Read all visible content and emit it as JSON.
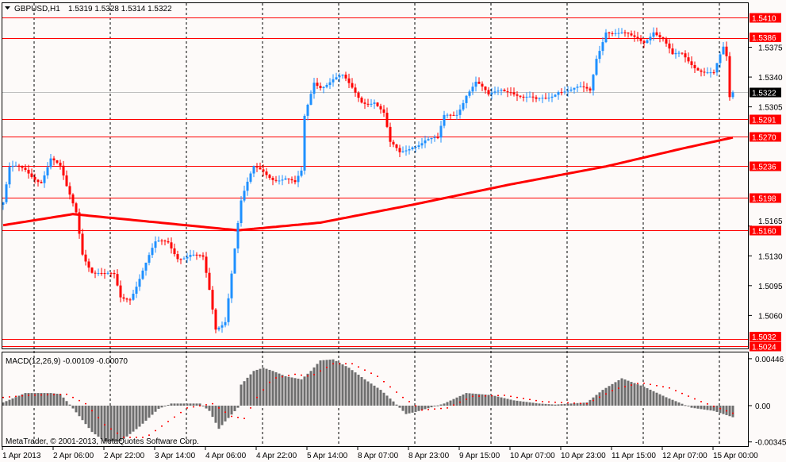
{
  "header": {
    "symbol": "GBPUSD,H1",
    "ohlc": "1.5319 1.5328 1.5314 1.5322",
    "menu_icon": "triangle-down-icon"
  },
  "macd_label": "MACD(12,26,9) -0.00109 -0.00070",
  "copyright": "MetaTrader, © 2001-2013, MetaQuotes Software Corp.",
  "colors": {
    "up": "#1e90ff",
    "down": "#ff0000",
    "ma": "#ff0000",
    "hist": "#6e6e6e",
    "level": "#ff0000",
    "bg": "#fdfaf9"
  },
  "chart_data": {
    "type": "candlestick",
    "price_ylim": [
      1.5012,
      1.5432
    ],
    "price_ticks": [
      "1.5375",
      "1.5340",
      "1.5305",
      "1.5165",
      "1.5130",
      "1.5095",
      "1.5060"
    ],
    "levels": [
      "1.5410",
      "1.5386",
      "1.5291",
      "1.5270",
      "1.5236",
      "1.5198",
      "1.5160",
      "1.5032",
      "1.5024"
    ],
    "current_price": "1.5322",
    "time_labels": [
      "1 Apr 2013",
      "2 Apr 06:00",
      "2 Apr 22:00",
      "3 Apr 14:00",
      "4 Apr 06:00",
      "4 Apr 22:00",
      "5 Apr 14:00",
      "8 Apr 07:00",
      "8 Apr 23:00",
      "9 Apr 15:00",
      "10 Apr 07:00",
      "10 Apr 23:00",
      "11 Apr 15:00",
      "12 Apr 07:00",
      "15 Apr 00:00"
    ],
    "bar_count": 231,
    "close_keypoints": [
      [
        0,
        1.5193
      ],
      [
        2,
        1.523
      ],
      [
        7,
        1.523
      ],
      [
        12,
        1.5221
      ],
      [
        15,
        1.5244
      ],
      [
        18,
        1.523
      ],
      [
        20,
        1.5207
      ],
      [
        23,
        1.5183
      ],
      [
        25,
        1.5137
      ],
      [
        28,
        1.5114
      ],
      [
        32,
        1.5104
      ],
      [
        35,
        1.5104
      ],
      [
        37,
        1.5081
      ],
      [
        40,
        1.5084
      ],
      [
        44,
        1.5114
      ],
      [
        48,
        1.5141
      ],
      [
        52,
        1.5146
      ],
      [
        55,
        1.5132
      ],
      [
        59,
        1.5132
      ],
      [
        63,
        1.5123
      ],
      [
        65,
        1.5086
      ],
      [
        67,
        1.5044
      ],
      [
        70,
        1.5058
      ],
      [
        72,
        1.5114
      ],
      [
        74,
        1.5169
      ],
      [
        75,
        1.5193
      ],
      [
        79,
        1.523
      ],
      [
        82,
        1.523
      ],
      [
        85,
        1.5225
      ],
      [
        89,
        1.5221
      ],
      [
        92,
        1.5211
      ],
      [
        94,
        1.5225
      ],
      [
        95,
        1.5291
      ],
      [
        98,
        1.5337
      ],
      [
        100,
        1.5333
      ],
      [
        104,
        1.5337
      ],
      [
        107,
        1.5337
      ],
      [
        109,
        1.5328
      ],
      [
        113,
        1.5314
      ],
      [
        117,
        1.5314
      ],
      [
        120,
        1.5295
      ],
      [
        122,
        1.5258
      ],
      [
        125,
        1.5249
      ],
      [
        129,
        1.5263
      ],
      [
        133,
        1.5267
      ],
      [
        137,
        1.5263
      ],
      [
        139,
        1.5291
      ],
      [
        143,
        1.53
      ],
      [
        146,
        1.5323
      ],
      [
        149,
        1.5333
      ],
      [
        153,
        1.5314
      ],
      [
        157,
        1.5328
      ],
      [
        160,
        1.5328
      ],
      [
        164,
        1.5314
      ],
      [
        168,
        1.5309
      ],
      [
        172,
        1.5319
      ],
      [
        175,
        1.5328
      ],
      [
        179,
        1.5323
      ],
      [
        185,
        1.5323
      ],
      [
        187,
        1.5365
      ],
      [
        190,
        1.5398
      ],
      [
        194,
        1.5389
      ],
      [
        198,
        1.5384
      ],
      [
        202,
        1.5384
      ],
      [
        205,
        1.5398
      ],
      [
        208,
        1.5384
      ],
      [
        211,
        1.5361
      ],
      [
        214,
        1.5365
      ],
      [
        218,
        1.5356
      ],
      [
        222,
        1.5347
      ],
      [
        224,
        1.5342
      ],
      [
        227,
        1.537
      ],
      [
        228,
        1.536
      ],
      [
        229,
        1.5314
      ],
      [
        230,
        1.5322
      ]
    ],
    "ma_keypoints": [
      [
        0,
        1.5166
      ],
      [
        22,
        1.5179
      ],
      [
        74,
        1.516
      ],
      [
        100,
        1.5169
      ],
      [
        129,
        1.519
      ],
      [
        160,
        1.5214
      ],
      [
        190,
        1.5235
      ],
      [
        214,
        1.5256
      ],
      [
        230,
        1.5269
      ]
    ],
    "macd_ylim": [
      -0.00345,
      0.00446
    ],
    "macd_ticks": [
      "0.00446",
      "0.00",
      "-0.00345"
    ],
    "macd_keypoints": [
      [
        0,
        0.0003
      ],
      [
        7,
        0.0012
      ],
      [
        15,
        0.0012
      ],
      [
        18,
        0.0011
      ],
      [
        21,
        0.0001
      ],
      [
        24,
        -0.001
      ],
      [
        28,
        -0.0025
      ],
      [
        32,
        -0.0034
      ],
      [
        37,
        -0.0034
      ],
      [
        43,
        -0.002
      ],
      [
        49,
        -0.0003
      ],
      [
        53,
        0.0002
      ],
      [
        62,
        0.0002
      ],
      [
        65,
        -0.0005
      ],
      [
        68,
        -0.0022
      ],
      [
        70,
        -0.0015
      ],
      [
        74,
        -0.0002
      ],
      [
        75,
        0.002
      ],
      [
        79,
        0.0033
      ],
      [
        82,
        0.0036
      ],
      [
        85,
        0.0033
      ],
      [
        89,
        0.0028
      ],
      [
        94,
        0.0025
      ],
      [
        97,
        0.0033
      ],
      [
        100,
        0.0043
      ],
      [
        104,
        0.0044
      ],
      [
        109,
        0.0036
      ],
      [
        114,
        0.0025
      ],
      [
        119,
        0.0015
      ],
      [
        123,
        0.0004
      ],
      [
        127,
        -0.0008
      ],
      [
        130,
        -0.0006
      ],
      [
        139,
        0.0002
      ],
      [
        146,
        0.0012
      ],
      [
        154,
        0.001
      ],
      [
        161,
        0.0005
      ],
      [
        169,
        0.0002
      ],
      [
        174,
        0.0001
      ],
      [
        184,
        0.0003
      ],
      [
        189,
        0.0015
      ],
      [
        195,
        0.0026
      ],
      [
        202,
        0.0018
      ],
      [
        209,
        0.0008
      ],
      [
        217,
        -0.0002
      ],
      [
        224,
        -0.0005
      ],
      [
        230,
        -0.0011
      ]
    ],
    "signal_keypoints": [
      [
        0,
        0.0008
      ],
      [
        8,
        0.001
      ],
      [
        20,
        0.0011
      ],
      [
        26,
        0.0002
      ],
      [
        32,
        -0.0018
      ],
      [
        38,
        -0.003
      ],
      [
        45,
        -0.003
      ],
      [
        52,
        -0.0015
      ],
      [
        58,
        -0.0002
      ],
      [
        66,
        0.0002
      ],
      [
        72,
        -0.001
      ],
      [
        76,
        -0.0012
      ],
      [
        80,
        0.0008
      ],
      [
        85,
        0.0026
      ],
      [
        92,
        0.003
      ],
      [
        97,
        0.0028
      ],
      [
        104,
        0.004
      ],
      [
        110,
        0.004
      ],
      [
        118,
        0.0028
      ],
      [
        126,
        0.0008
      ],
      [
        132,
        -0.0004
      ],
      [
        140,
        -0.0002
      ],
      [
        148,
        0.0009
      ],
      [
        158,
        0.001
      ],
      [
        170,
        0.0004
      ],
      [
        184,
        0.0002
      ],
      [
        193,
        0.0016
      ],
      [
        201,
        0.0022
      ],
      [
        210,
        0.0017
      ],
      [
        220,
        0.0004
      ],
      [
        230,
        -0.0007
      ]
    ]
  }
}
